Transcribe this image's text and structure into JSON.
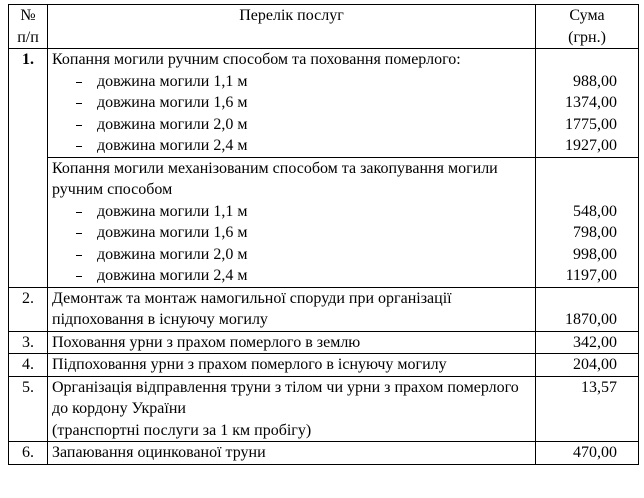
{
  "table": {
    "header": {
      "number": [
        "№",
        "п/п"
      ],
      "service": "Перелік послуг",
      "sum": [
        "Сума",
        "(грн.)"
      ]
    },
    "rows": [
      {
        "number": "1.",
        "groups": [
          {
            "title": "Копання могили ручним способом та поховання померлого:",
            "items": [
              {
                "label": "довжина могили 1,1 м",
                "sum": "988,00"
              },
              {
                "label": "довжина могили 1,6 м",
                "sum": "1374,00"
              },
              {
                "label": "довжина могили 2,0 м",
                "sum": "1775,00"
              },
              {
                "label": "довжина могили 2,4 м",
                "sum": "1927,00"
              }
            ]
          },
          {
            "title": "Копання могили механізованим способом та закопування могили ручним способом",
            "items": [
              {
                "label": "довжина могили 1,1 м",
                "sum": "548,00"
              },
              {
                "label": "довжина могили 1,6 м",
                "sum": "798,00"
              },
              {
                "label": "довжина могили 2,0 м",
                "sum": "998,00"
              },
              {
                "label": "довжина могили 2,4 м",
                "sum": "1197,00"
              }
            ]
          }
        ]
      },
      {
        "number": "2.",
        "description": [
          "Демонтаж та монтаж намогильної споруди при організації підпоховання в існуючу могилу"
        ],
        "sum": "1870,00"
      },
      {
        "number": "3.",
        "description": [
          "Поховання урни з прахом померлого в землю"
        ],
        "sum": "342,00"
      },
      {
        "number": "4.",
        "description": [
          "Підпоховання урни з прахом померлого в існуючу могилу"
        ],
        "sum": "204,00"
      },
      {
        "number": "5.",
        "description": [
          "Організація відправлення труни з тілом чи урни з прахом померлого до кордону України",
          "(транспортні послуги за 1 км пробігу)"
        ],
        "sum": "13,57"
      },
      {
        "number": "6.",
        "description": [
          "Запаювання оцинкованої труни"
        ],
        "sum": "470,00"
      }
    ]
  }
}
